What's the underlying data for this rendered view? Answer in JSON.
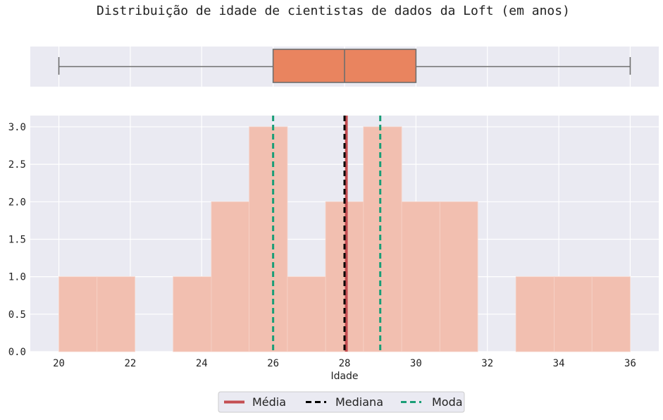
{
  "chart_data": {
    "title": "Distribuição de idade de cientistas de dados da Loft (em anos)",
    "xlabel": "Idade",
    "ylabel": "",
    "xlim": [
      19.2,
      36.8
    ],
    "ylim": [
      0,
      3.15
    ],
    "xticks": [
      20,
      22,
      24,
      26,
      28,
      30,
      32,
      34,
      36
    ],
    "xtick_labels": [
      "20",
      "22",
      "24",
      "26",
      "28",
      "30",
      "32",
      "34",
      "36"
    ],
    "yticks": [
      0,
      0.5,
      1.0,
      1.5,
      2.0,
      2.5,
      3.0
    ],
    "ytick_labels": [
      "0.0",
      "0.5",
      "1.0",
      "1.5",
      "2.0",
      "2.5",
      "3.0"
    ],
    "grid": true,
    "legend_position": "bottom-center",
    "boxplot": {
      "type": "box",
      "min": 20,
      "q1": 26,
      "median": 28,
      "q3": 30,
      "max": 36,
      "color": "#e9845f"
    },
    "histogram": {
      "type": "bar",
      "color": "#f2bfb0",
      "bins": [
        {
          "start": 20.0,
          "end": 21.07,
          "count": 1
        },
        {
          "start": 21.07,
          "end": 22.13,
          "count": 1
        },
        {
          "start": 23.2,
          "end": 24.27,
          "count": 1
        },
        {
          "start": 24.27,
          "end": 25.33,
          "count": 2
        },
        {
          "start": 25.33,
          "end": 26.4,
          "count": 3
        },
        {
          "start": 26.4,
          "end": 27.47,
          "count": 1
        },
        {
          "start": 27.47,
          "end": 28.53,
          "count": 2
        },
        {
          "start": 28.53,
          "end": 29.6,
          "count": 3
        },
        {
          "start": 29.6,
          "end": 30.67,
          "count": 2
        },
        {
          "start": 30.67,
          "end": 31.73,
          "count": 2
        },
        {
          "start": 32.8,
          "end": 33.87,
          "count": 1
        },
        {
          "start": 33.87,
          "end": 34.93,
          "count": 1
        },
        {
          "start": 34.93,
          "end": 36.0,
          "count": 1
        }
      ]
    },
    "lines": [
      {
        "name": "Média",
        "value": 28.05,
        "color": "#c44e52",
        "style": "solid"
      },
      {
        "name": "Mediana",
        "value": 28.0,
        "color": "#000000",
        "style": "dashed"
      },
      {
        "name": "Moda",
        "value": 26.0,
        "color": "#1a9e77",
        "style": "dashed"
      },
      {
        "name": "",
        "value": 29.0,
        "color": "#1a9e77",
        "style": "dashed"
      }
    ],
    "legend": [
      "Média",
      "Mediana",
      "Moda"
    ]
  }
}
